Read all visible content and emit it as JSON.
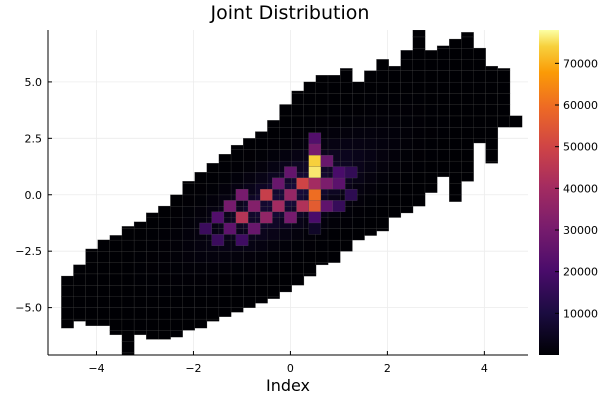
{
  "chart_data": {
    "type": "heatmap",
    "title": "Joint Distribution",
    "xlabel": "Index",
    "ylabel": "",
    "xlim": [
      -5.0,
      4.9
    ],
    "ylim": [
      -7.1,
      7.3
    ],
    "x_ticks": [
      -4,
      -2,
      0,
      2,
      4
    ],
    "y_ticks": [
      -5.0,
      -2.5,
      0.0,
      2.5,
      5.0
    ],
    "x_tick_labels": [
      "−4",
      "−2",
      "0",
      "2",
      "4"
    ],
    "y_tick_labels": [
      "−5.0",
      "−2.5",
      "0.0",
      "2.5",
      "5.0"
    ],
    "grid": true,
    "colorbar": {
      "range": [
        0,
        78000
      ],
      "ticks": [
        10000,
        20000,
        30000,
        40000,
        50000,
        60000,
        70000
      ],
      "tick_labels": [
        "10000",
        "20000",
        "30000",
        "40000",
        "50000",
        "60000",
        "70000"
      ],
      "colormap": "inferno"
    },
    "bin_width": 0.25,
    "bin_height": 0.5,
    "columns": [
      {
        "x": -4.6,
        "y_range": [
          -5.9,
          -3.6
        ]
      },
      {
        "x": -4.35,
        "y_range": [
          -5.6,
          -3.1
        ]
      },
      {
        "x": -4.1,
        "y_range": [
          -5.8,
          -2.4
        ]
      },
      {
        "x": -3.85,
        "y_range": [
          -5.8,
          -2.0
        ]
      },
      {
        "x": -3.6,
        "y_range": [
          -6.2,
          -1.8
        ]
      },
      {
        "x": -3.35,
        "y_range": [
          -7.1,
          -1.4
        ]
      },
      {
        "x": -3.1,
        "y_range": [
          -6.2,
          -1.2
        ]
      },
      {
        "x": -2.85,
        "y_range": [
          -6.4,
          -0.8
        ]
      },
      {
        "x": -2.6,
        "y_range": [
          -6.4,
          -0.5
        ]
      },
      {
        "x": -2.35,
        "y_range": [
          -6.3,
          0.0
        ]
      },
      {
        "x": -2.1,
        "y_range": [
          -6.0,
          0.6
        ]
      },
      {
        "x": -1.85,
        "y_range": [
          -5.9,
          1.0
        ]
      },
      {
        "x": -1.6,
        "y_range": [
          -5.6,
          1.4
        ]
      },
      {
        "x": -1.35,
        "y_range": [
          -5.4,
          1.8
        ]
      },
      {
        "x": -1.1,
        "y_range": [
          -5.2,
          2.2
        ]
      },
      {
        "x": -0.85,
        "y_range": [
          -5.0,
          2.5
        ]
      },
      {
        "x": -0.6,
        "y_range": [
          -4.8,
          2.8
        ]
      },
      {
        "x": -0.35,
        "y_range": [
          -4.6,
          3.3
        ]
      },
      {
        "x": -0.1,
        "y_range": [
          -4.3,
          4.0
        ]
      },
      {
        "x": 0.15,
        "y_range": [
          -4.0,
          4.6
        ]
      },
      {
        "x": 0.4,
        "y_range": [
          -3.6,
          5.0
        ]
      },
      {
        "x": 0.65,
        "y_range": [
          -3.1,
          5.3
        ]
      },
      {
        "x": 0.9,
        "y_range": [
          -3.0,
          5.3
        ]
      },
      {
        "x": 1.15,
        "y_range": [
          -2.5,
          5.6
        ]
      },
      {
        "x": 1.4,
        "y_range": [
          -2.0,
          5.0
        ]
      },
      {
        "x": 1.65,
        "y_range": [
          -1.8,
          5.5
        ]
      },
      {
        "x": 1.9,
        "y_range": [
          -1.6,
          6.0
        ]
      },
      {
        "x": 2.15,
        "y_range": [
          -1.0,
          5.7
        ]
      },
      {
        "x": 2.4,
        "y_range": [
          -0.8,
          6.4
        ]
      },
      {
        "x": 2.65,
        "y_range": [
          -0.5,
          7.3
        ]
      },
      {
        "x": 2.9,
        "y_range": [
          0.1,
          6.4
        ]
      },
      {
        "x": 3.15,
        "y_range": [
          0.8,
          6.6
        ]
      },
      {
        "x": 3.4,
        "y_range": [
          -0.3,
          6.9
        ]
      },
      {
        "x": 3.65,
        "y_range": [
          0.6,
          7.2
        ]
      },
      {
        "x": 3.9,
        "y_range": [
          2.3,
          6.5
        ]
      },
      {
        "x": 4.15,
        "y_range": [
          1.4,
          5.7
        ]
      },
      {
        "x": 4.4,
        "y_range": [
          3.0,
          5.6
        ]
      },
      {
        "x": 4.65,
        "y_range": [
          3.0,
          3.5
        ]
      }
    ],
    "hot_cells": [
      {
        "x": 0.5,
        "y": 2.5,
        "value": 22000
      },
      {
        "x": 0.5,
        "y": 2.0,
        "value": 30000
      },
      {
        "x": 0.5,
        "y": 1.0,
        "value": 76000
      },
      {
        "x": 0.5,
        "y": 0.0,
        "value": 60000
      },
      {
        "x": 0.5,
        "y": -0.5,
        "value": 56000
      },
      {
        "x": 0.5,
        "y": -1.0,
        "value": 20000
      },
      {
        "x": 0.5,
        "y": 1.5,
        "value": 74000
      },
      {
        "x": 0.5,
        "y": -1.5,
        "value": 6000
      },
      {
        "x": 0.5,
        "y": 0.5,
        "value": 40000
      },
      {
        "x": 0.25,
        "y": 0.5,
        "value": 50000
      },
      {
        "x": 0.25,
        "y": -0.5,
        "value": 43000
      },
      {
        "x": 0.75,
        "y": 1.5,
        "value": 27000
      },
      {
        "x": 0.75,
        "y": -0.5,
        "value": 25000
      },
      {
        "x": 0.75,
        "y": 0.5,
        "value": 31000
      },
      {
        "x": 0.0,
        "y": 0.0,
        "value": 37000
      },
      {
        "x": 0.0,
        "y": -1.0,
        "value": 30000
      },
      {
        "x": 0.0,
        "y": 1.0,
        "value": 26000
      },
      {
        "x": -0.25,
        "y": -0.5,
        "value": 40000
      },
      {
        "x": -0.25,
        "y": 0.5,
        "value": 27000
      },
      {
        "x": -0.5,
        "y": 0.0,
        "value": 48000
      },
      {
        "x": -0.5,
        "y": -1.0,
        "value": 36000
      },
      {
        "x": -0.75,
        "y": -0.5,
        "value": 33000
      },
      {
        "x": -0.75,
        "y": -1.5,
        "value": 27000
      },
      {
        "x": -1.0,
        "y": -1.0,
        "value": 44000
      },
      {
        "x": -1.0,
        "y": 0.0,
        "value": 30000
      },
      {
        "x": -1.0,
        "y": -2.0,
        "value": 18000
      },
      {
        "x": -1.25,
        "y": -0.5,
        "value": 30000
      },
      {
        "x": -1.25,
        "y": -1.5,
        "value": 25000
      },
      {
        "x": -1.5,
        "y": -1.0,
        "value": 22000
      },
      {
        "x": -1.5,
        "y": -2.0,
        "value": 17000
      },
      {
        "x": -1.75,
        "y": -1.5,
        "value": 17000
      },
      {
        "x": 1.0,
        "y": 0.5,
        "value": 24000
      },
      {
        "x": 1.0,
        "y": 1.0,
        "value": 20000
      },
      {
        "x": 1.0,
        "y": -0.5,
        "value": 16000
      },
      {
        "x": 1.25,
        "y": 1.0,
        "value": 15000
      },
      {
        "x": 1.25,
        "y": 0.0,
        "value": 14000
      }
    ]
  }
}
